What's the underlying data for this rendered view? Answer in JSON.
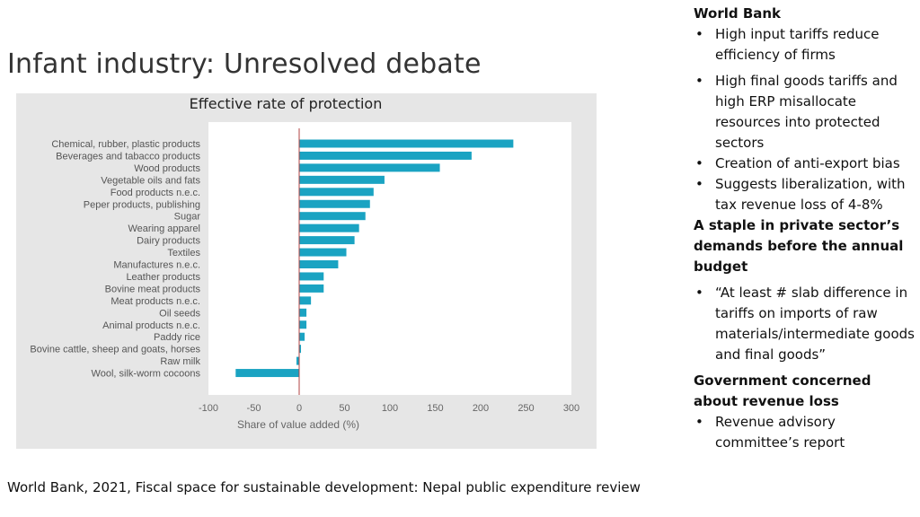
{
  "slide": {
    "title": "Infant industry: Unresolved debate",
    "footer": "World Bank, 2021, Fiscal space for sustainable development: Nepal public expenditure review"
  },
  "right_panel": {
    "section1_heading": "World Bank",
    "section1_bullets": [
      "High input tariffs reduce efficiency of firms",
      "High final goods tariffs and high ERP misallocate resources into protected sectors",
      "Creation of anti-export bias",
      "Suggests liberalization, with tax revenue loss of 4-8%"
    ],
    "section2_heading": "A staple in private sector’s demands before the annual budget",
    "section2_bullets": [
      "“At least # slab difference in tariffs on imports of raw materials/intermediate goods and final goods”"
    ],
    "section3_heading": "Government concerned about revenue loss",
    "section3_bullets": [
      "Revenue advisory committee’s report"
    ]
  },
  "colors": {
    "bar": "#1aa3c2",
    "zero_line": "#b04040"
  },
  "chart_data": {
    "type": "bar",
    "orientation": "horizontal",
    "title": "Effective rate of protection",
    "xlabel": "Share of value added (%)",
    "ylabel": "",
    "xlim": [
      -100,
      300
    ],
    "xticks": [
      -100,
      -50,
      0,
      50,
      100,
      150,
      200,
      250,
      300
    ],
    "categories": [
      "Chemical, rubber, plastic products",
      "Beverages and tabacco products",
      "Wood products",
      "Vegetable oils and fats",
      "Food products n.e.c.",
      "Peper products, publishing",
      "Sugar",
      "Wearing apparel",
      "Dairy products",
      "Textiles",
      "Manufactures n.e.c.",
      "Leather products",
      "Bovine meat products",
      "Meat products n.e.c.",
      "Oil seeds",
      "Animal products n.e.c.",
      "Paddy rice",
      "Bovine cattle, sheep and goats, horses",
      "Raw milk",
      "Wool, silk-worm cocoons"
    ],
    "values": [
      236,
      190,
      155,
      94,
      82,
      78,
      73,
      66,
      61,
      52,
      43,
      27,
      27,
      13,
      8,
      8,
      6,
      2,
      -3,
      -70
    ]
  }
}
